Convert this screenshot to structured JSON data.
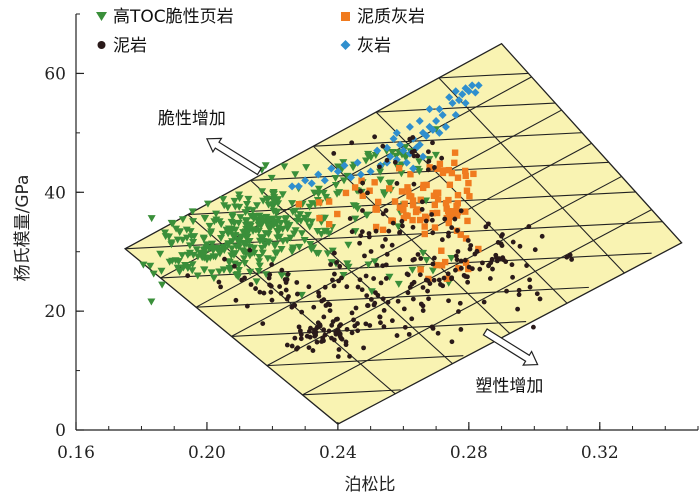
{
  "chart_data": {
    "type": "scatter",
    "xlabel": "泊松比",
    "ylabel": "杨氏模量/GPa",
    "xlim": [
      0.16,
      0.35
    ],
    "ylim": [
      0,
      70
    ],
    "x_ticks": [
      "0.16",
      "0.20",
      "0.24",
      "0.28",
      "0.32"
    ],
    "x_tick_values": [
      0.16,
      0.2,
      0.24,
      0.28,
      0.32
    ],
    "y_ticks": [
      "0",
      "20",
      "40",
      "60"
    ],
    "y_tick_values": [
      0,
      20,
      40,
      60
    ],
    "legend_position": "top-left",
    "region_vertices": [
      [
        0.175,
        30.5
      ],
      [
        0.24,
        1
      ],
      [
        0.345,
        31.5
      ],
      [
        0.29,
        65
      ]
    ],
    "annotations": [
      {
        "text": "脆性增加",
        "x": 0.185,
        "y": 51.5,
        "arrow_from": [
          0.216,
          43.5
        ],
        "arrow_to": [
          0.2,
          49
        ]
      },
      {
        "text": "塑性增加",
        "x": 0.282,
        "y": 6.5,
        "arrow_from": [
          0.285,
          16.5
        ],
        "arrow_to": [
          0.301,
          11
        ]
      }
    ],
    "series": [
      {
        "name": "高TOC脆性页岩",
        "marker": "triangle-down",
        "color": "#3a8f3a",
        "clusters": [
          {
            "cx": 0.207,
            "cy": 31.5,
            "sx": 0.012,
            "sy": 3.2,
            "n": 160
          },
          {
            "cx": 0.222,
            "cy": 35.5,
            "sx": 0.008,
            "sy": 3.0,
            "n": 120
          },
          {
            "cx": 0.196,
            "cy": 28.5,
            "sx": 0.007,
            "sy": 1.8,
            "n": 25
          },
          {
            "cx": 0.24,
            "cy": 38.5,
            "sx": 0.009,
            "sy": 3.0,
            "n": 40
          },
          {
            "cx": 0.252,
            "cy": 43.5,
            "sx": 0.01,
            "sy": 2.0,
            "n": 25
          },
          {
            "cx": 0.262,
            "cy": 46.5,
            "sx": 0.006,
            "sy": 1.8,
            "n": 12
          },
          {
            "cx": 0.248,
            "cy": 28.0,
            "sx": 0.015,
            "sy": 2.0,
            "n": 25
          }
        ]
      },
      {
        "name": "泥质灰岩",
        "marker": "square",
        "color": "#f07b1f",
        "clusters": [
          {
            "cx": 0.268,
            "cy": 38.0,
            "sx": 0.008,
            "sy": 3.0,
            "n": 70
          },
          {
            "cx": 0.25,
            "cy": 37.5,
            "sx": 0.008,
            "sy": 2.5,
            "n": 20
          },
          {
            "cx": 0.272,
            "cy": 29.0,
            "sx": 0.008,
            "sy": 2.5,
            "n": 10
          },
          {
            "cx": 0.275,
            "cy": 45.0,
            "sx": 0.004,
            "sy": 1.5,
            "n": 8
          }
        ]
      },
      {
        "name": "泥岩",
        "marker": "circle",
        "color": "#2a1a1a",
        "clusters": [
          {
            "cx": 0.236,
            "cy": 16.0,
            "sx": 0.006,
            "sy": 2.0,
            "n": 55
          },
          {
            "cx": 0.25,
            "cy": 21.5,
            "sx": 0.014,
            "sy": 4.0,
            "n": 90
          },
          {
            "cx": 0.28,
            "cy": 28.5,
            "sx": 0.012,
            "sy": 3.0,
            "n": 70
          },
          {
            "cx": 0.262,
            "cy": 34.0,
            "sx": 0.01,
            "sy": 4.0,
            "n": 40
          },
          {
            "cx": 0.222,
            "cy": 25.0,
            "sx": 0.012,
            "sy": 2.5,
            "n": 35
          },
          {
            "cx": 0.258,
            "cy": 45.0,
            "sx": 0.009,
            "sy": 2.0,
            "n": 20
          },
          {
            "cx": 0.295,
            "cy": 22.0,
            "sx": 0.006,
            "sy": 2.0,
            "n": 10
          }
        ]
      },
      {
        "name": "灰岩",
        "marker": "diamond",
        "color": "#2f8fce",
        "points": [
          [
            0.274,
            56
          ],
          [
            0.276,
            57
          ],
          [
            0.279,
            57.5
          ],
          [
            0.281,
            58
          ],
          [
            0.283,
            58
          ],
          [
            0.278,
            56.5
          ],
          [
            0.28,
            57
          ],
          [
            0.282,
            56.8
          ],
          [
            0.271,
            54
          ],
          [
            0.272,
            53
          ],
          [
            0.275,
            55
          ],
          [
            0.277,
            55.5
          ],
          [
            0.268,
            51
          ],
          [
            0.27,
            52
          ],
          [
            0.266,
            50
          ],
          [
            0.269,
            50.5
          ],
          [
            0.263,
            49
          ],
          [
            0.265,
            48
          ],
          [
            0.267,
            49.5
          ],
          [
            0.26,
            47
          ],
          [
            0.262,
            46.5
          ],
          [
            0.264,
            47.5
          ],
          [
            0.256,
            46
          ],
          [
            0.258,
            45.5
          ],
          [
            0.253,
            44.5
          ],
          [
            0.255,
            45
          ],
          [
            0.25,
            43.5
          ],
          [
            0.247,
            43
          ],
          [
            0.244,
            42.5
          ],
          [
            0.236,
            42
          ],
          [
            0.232,
            41.5
          ],
          [
            0.228,
            41
          ],
          [
            0.226,
            41
          ],
          [
            0.23,
            42
          ],
          [
            0.234,
            43
          ],
          [
            0.24,
            43.5
          ],
          [
            0.263,
            44
          ],
          [
            0.266,
            46
          ],
          [
            0.261,
            45
          ],
          [
            0.259,
            48
          ],
          [
            0.271,
            50
          ],
          [
            0.273,
            51
          ],
          [
            0.257,
            49
          ],
          [
            0.262,
            51
          ],
          [
            0.265,
            52
          ],
          [
            0.268,
            54
          ],
          [
            0.258,
            50
          ],
          [
            0.255,
            47.5
          ],
          [
            0.276,
            53
          ],
          [
            0.279,
            55
          ],
          [
            0.238,
            44
          ],
          [
            0.242,
            44.5
          ],
          [
            0.246,
            45
          ],
          [
            0.252,
            47
          ]
        ]
      }
    ]
  }
}
